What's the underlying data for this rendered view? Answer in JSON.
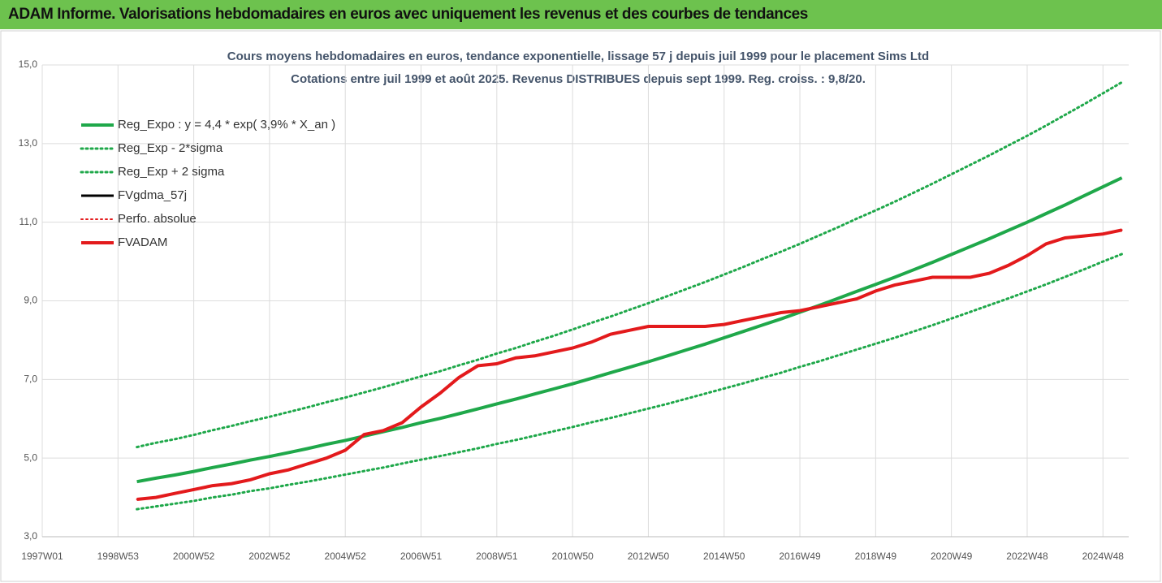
{
  "header": {
    "title": "ADAM Informe. Valorisations hebdomadaires en euros avec uniquement les revenus et des courbes de tendances"
  },
  "chart_data": {
    "type": "line",
    "title": "Cours moyens hebdomadaires en euros, tendance exponentielle, lissage 57 j depuis juil 1999 pour le placement Sims Ltd",
    "subtitle": "Cotations entre juil 1999 et août 2025. Revenus DISTRIBUES depuis sept 1999. Reg. croiss. : 9,8/20.",
    "x": [
      1999.5,
      2000,
      2000.5,
      2001,
      2001.5,
      2002,
      2002.5,
      2003,
      2003.5,
      2004,
      2004.5,
      2005,
      2005.5,
      2006,
      2006.5,
      2007,
      2007.5,
      2008,
      2008.5,
      2009,
      2009.5,
      2010,
      2010.5,
      2011,
      2011.5,
      2012,
      2012.5,
      2013,
      2013.5,
      2014,
      2014.5,
      2015,
      2015.5,
      2016,
      2016.5,
      2017,
      2017.5,
      2018,
      2018.5,
      2019,
      2019.5,
      2020,
      2020.5,
      2021,
      2021.5,
      2022,
      2022.5,
      2023,
      2023.5,
      2024,
      2024.5,
      2025,
      2025.5
    ],
    "series": [
      {
        "name": "Reg_Expo : y = 4,4 * exp( 3,9% *  X_an )",
        "color": "#1fa84a",
        "style": "solid",
        "width": 4,
        "values": [
          4.4,
          4.49,
          4.57,
          4.66,
          4.76,
          4.85,
          4.95,
          5.04,
          5.14,
          5.24,
          5.35,
          5.45,
          5.56,
          5.67,
          5.78,
          5.9,
          6.01,
          6.13,
          6.25,
          6.38,
          6.5,
          6.63,
          6.76,
          6.89,
          7.03,
          7.17,
          7.31,
          7.45,
          7.6,
          7.75,
          7.9,
          8.06,
          8.22,
          8.38,
          8.54,
          8.71,
          8.88,
          9.06,
          9.24,
          9.42,
          9.6,
          9.79,
          9.98,
          10.18,
          10.38,
          10.58,
          10.79,
          11.0,
          11.22,
          11.44,
          11.67,
          11.9,
          12.13
        ]
      },
      {
        "name": "Reg_Exp - 2*sigma",
        "color": "#1fa84a",
        "style": "dotted",
        "width": 3,
        "values": [
          3.7,
          3.77,
          3.84,
          3.91,
          4.0,
          4.07,
          4.16,
          4.23,
          4.32,
          4.4,
          4.49,
          4.58,
          4.67,
          4.76,
          4.86,
          4.96,
          5.05,
          5.15,
          5.25,
          5.36,
          5.46,
          5.57,
          5.68,
          5.79,
          5.91,
          6.02,
          6.14,
          6.26,
          6.38,
          6.51,
          6.64,
          6.77,
          6.9,
          7.04,
          7.17,
          7.32,
          7.46,
          7.61,
          7.76,
          7.91,
          8.06,
          8.22,
          8.38,
          8.55,
          8.72,
          8.89,
          9.06,
          9.24,
          9.42,
          9.61,
          9.8,
          10.0,
          10.19
        ]
      },
      {
        "name": "Reg_Exp + 2 sigma",
        "color": "#1fa84a",
        "style": "dotted",
        "width": 3,
        "values": [
          5.28,
          5.39,
          5.48,
          5.59,
          5.71,
          5.82,
          5.94,
          6.05,
          6.17,
          6.29,
          6.42,
          6.54,
          6.67,
          6.8,
          6.94,
          7.08,
          7.21,
          7.36,
          7.5,
          7.66,
          7.8,
          7.96,
          8.11,
          8.27,
          8.44,
          8.6,
          8.77,
          8.94,
          9.12,
          9.3,
          9.48,
          9.67,
          9.86,
          10.06,
          10.25,
          10.45,
          10.66,
          10.87,
          11.09,
          11.3,
          11.52,
          11.75,
          11.98,
          12.22,
          12.46,
          12.7,
          12.95,
          13.2,
          13.46,
          13.73,
          14.0,
          14.28,
          14.56
        ]
      },
      {
        "name": "FVgdma_57j",
        "color": "#000000",
        "style": "solid",
        "width": 3,
        "values": [
          3.95,
          4.0,
          4.1,
          4.2,
          4.3,
          4.35,
          4.45,
          4.6,
          4.7,
          4.85,
          5.0,
          5.2,
          5.6,
          5.7,
          5.9,
          6.3,
          6.65,
          7.05,
          7.35,
          7.4,
          7.55,
          7.6,
          7.7,
          7.8,
          7.95,
          8.15,
          8.25,
          8.35,
          8.35,
          8.35,
          8.35,
          8.4,
          8.5,
          8.6,
          8.7,
          8.75,
          8.85,
          8.95,
          9.05,
          9.25,
          9.4,
          9.5,
          9.6,
          9.6,
          9.6,
          9.7,
          9.9,
          10.15,
          10.45,
          10.6,
          10.65,
          10.7,
          10.8
        ]
      },
      {
        "name": "Perfo. absolue",
        "color": "#e31a1c",
        "style": "dotted",
        "width": 2,
        "values": [
          3.95,
          4.0,
          4.1,
          4.2,
          4.3,
          4.35,
          4.45,
          4.6,
          4.7,
          4.85,
          5.0,
          5.2,
          5.6,
          5.7,
          5.9,
          6.3,
          6.65,
          7.05,
          7.35,
          7.4,
          7.55,
          7.6,
          7.7,
          7.8,
          7.95,
          8.15,
          8.25,
          8.35,
          8.35,
          8.35,
          8.35,
          8.4,
          8.5,
          8.6,
          8.7,
          8.75,
          8.85,
          8.95,
          9.05,
          9.25,
          9.4,
          9.5,
          9.6,
          9.6,
          9.6,
          9.7,
          9.9,
          10.15,
          10.45,
          10.6,
          10.65,
          10.7,
          10.8
        ]
      },
      {
        "name": "FVADAM",
        "color": "#e31a1c",
        "style": "solid",
        "width": 4,
        "values": [
          3.95,
          4.0,
          4.1,
          4.2,
          4.3,
          4.35,
          4.45,
          4.6,
          4.7,
          4.85,
          5.0,
          5.2,
          5.6,
          5.7,
          5.9,
          6.3,
          6.65,
          7.05,
          7.35,
          7.4,
          7.55,
          7.6,
          7.7,
          7.8,
          7.95,
          8.15,
          8.25,
          8.35,
          8.35,
          8.35,
          8.35,
          8.4,
          8.5,
          8.6,
          8.7,
          8.75,
          8.85,
          8.95,
          9.05,
          9.25,
          9.4,
          9.5,
          9.6,
          9.6,
          9.6,
          9.7,
          9.9,
          10.15,
          10.45,
          10.6,
          10.65,
          10.7,
          10.8
        ]
      }
    ],
    "xlim": [
      1997,
      2025.68
    ],
    "xticks": [
      {
        "value": 1997,
        "label": "1997W01"
      },
      {
        "value": 1999,
        "label": "1998W53"
      },
      {
        "value": 2001,
        "label": "2000W52"
      },
      {
        "value": 2003,
        "label": "2002W52"
      },
      {
        "value": 2005,
        "label": "2004W52"
      },
      {
        "value": 2007,
        "label": "2006W51"
      },
      {
        "value": 2009,
        "label": "2008W51"
      },
      {
        "value": 2011,
        "label": "2010W50"
      },
      {
        "value": 2013,
        "label": "2012W50"
      },
      {
        "value": 2015,
        "label": "2014W50"
      },
      {
        "value": 2017,
        "label": "2016W49"
      },
      {
        "value": 2019,
        "label": "2018W49"
      },
      {
        "value": 2021,
        "label": "2020W49"
      },
      {
        "value": 2023,
        "label": "2022W48"
      },
      {
        "value": 2025,
        "label": "2024W48"
      }
    ],
    "ylim": [
      3,
      15
    ],
    "yticks": [
      {
        "value": 3,
        "label": "3,0"
      },
      {
        "value": 5,
        "label": "5,0"
      },
      {
        "value": 7,
        "label": "7,0"
      },
      {
        "value": 9,
        "label": "9,0"
      },
      {
        "value": 11,
        "label": "11,0"
      },
      {
        "value": 13,
        "label": "13,0"
      },
      {
        "value": 15,
        "label": "15,0"
      }
    ],
    "grid": true,
    "legend": "top-left"
  }
}
